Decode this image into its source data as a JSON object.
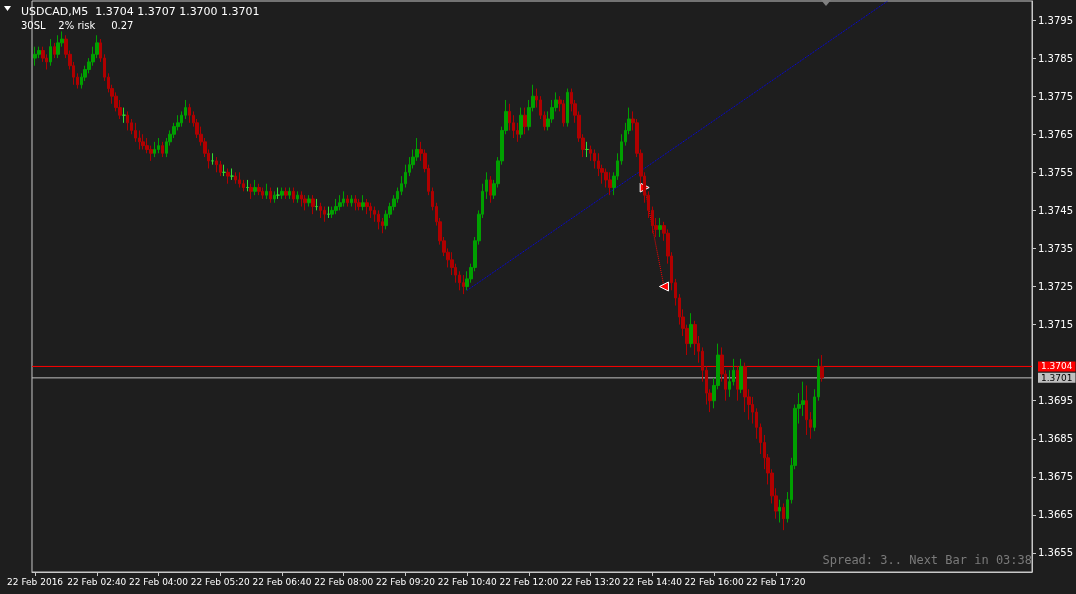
{
  "chart_data": {
    "type": "candlestick",
    "title": "USDCAD,M5  1.3704 1.3707 1.3700 1.3701",
    "subtitle": "30SL    2% risk     0.27",
    "annotations": [
      "Spread: 3.. Next Bar in 03:38"
    ],
    "xlim": [
      "2016-02-22T01:16",
      "2016-02-22T22:52"
    ],
    "xticks": [
      {
        "value": "2016-02-22T01:20",
        "label": "22 Feb 2016"
      },
      {
        "value": "2016-02-22T02:40",
        "label": "22 Feb 02:40"
      },
      {
        "value": "2016-02-22T04:00",
        "label": "22 Feb 04:00"
      },
      {
        "value": "2016-02-22T05:20",
        "label": "22 Feb 05:20"
      },
      {
        "value": "2016-02-22T06:40",
        "label": "22 Feb 06:40"
      },
      {
        "value": "2016-02-22T08:00",
        "label": "22 Feb 08:00"
      },
      {
        "value": "2016-02-22T09:20",
        "label": "22 Feb 09:20"
      },
      {
        "value": "2016-02-22T10:40",
        "label": "22 Feb 10:40"
      },
      {
        "value": "2016-02-22T12:00",
        "label": "22 Feb 12:00"
      },
      {
        "value": "2016-02-22T13:20",
        "label": "22 Feb 13:20"
      },
      {
        "value": "2016-02-22T14:40",
        "label": "22 Feb 14:40"
      },
      {
        "value": "2016-02-22T16:00",
        "label": "22 Feb 16:00"
      },
      {
        "value": "2016-02-22T17:20",
        "label": "22 Feb 17:20"
      }
    ],
    "ylim": [
      1.365,
      1.38
    ],
    "yticks": [
      1.3655,
      1.3665,
      1.3675,
      1.3685,
      1.3695,
      1.3715,
      1.3725,
      1.3735,
      1.3745,
      1.3755,
      1.3765,
      1.3775,
      1.3785,
      1.3795
    ],
    "ref_lines": [
      {
        "axis": "y",
        "value": 1.3704,
        "label": "1.3704",
        "color": "#ff0000"
      },
      {
        "axis": "y",
        "value": 1.3701,
        "label": "1.3701",
        "color": "#c0c0c0"
      }
    ],
    "series": [
      {
        "colors": [
          "#00a000",
          "#00a000",
          "#b00000",
          "#b00000",
          "#00a000",
          "#b00000",
          "#00a000",
          "#00a000",
          "#b00000",
          "#b00000",
          "#b00000",
          "#b00000",
          "#00a000",
          "#00a000",
          "#00a000",
          "#00a000",
          "#00a000",
          "#b00000",
          "#b00000",
          "#b00000",
          "#b00000",
          "#b00000",
          "#b00000",
          "#30e030",
          "#b00000",
          "#b00000",
          "#b00000",
          "#b00000",
          "#b00000",
          "#b00000",
          "#b00000",
          "#00a000",
          "#00a000",
          "#b00000",
          "#00a000",
          "#00a000",
          "#00a000",
          "#00a000",
          "#00a000",
          "#00a000",
          "#b00000",
          "#b00000",
          "#b00000",
          "#b00000",
          "#b00000",
          "#b00000",
          "#30e030",
          "#b00000",
          "#b00000",
          "#30e030",
          "#b00000",
          "#30e030",
          "#b00000",
          "#b00000",
          "#b00000",
          "#30e030",
          "#b00000",
          "#00a000",
          "#b00000",
          "#b00000",
          "#00a000",
          "#b00000",
          "#00a000",
          "#30e030",
          "#00a000",
          "#b00000",
          "#00a000",
          "#b00000",
          "#00a000",
          "#b00000",
          "#b00000",
          "#00a000",
          "#b00000",
          "#30e030",
          "#b00000",
          "#b00000",
          "#30e030",
          "#00a000",
          "#00a000",
          "#00a000",
          "#00a000",
          "#b00000",
          "#00a000",
          "#b00000",
          "#b00000",
          "#00a000",
          "#b00000",
          "#b00000",
          "#b00000",
          "#b00000",
          "#b00000",
          "#00a000",
          "#00a000",
          "#00a000",
          "#00a000",
          "#00a000",
          "#00a000",
          "#00a000",
          "#00a000",
          "#00a000",
          "#b00000",
          "#b00000",
          "#b00000",
          "#b00000",
          "#b00000",
          "#b00000",
          "#b00000",
          "#b00000",
          "#b00000",
          "#b00000",
          "#b00000",
          "#b00000",
          "#00a000",
          "#00a000",
          "#00a000",
          "#00a000",
          "#00a000",
          "#00a000",
          "#b00000",
          "#00a000",
          "#00a000",
          "#00a000",
          "#00a000",
          "#b00000",
          "#b00000",
          "#b00000",
          "#00a000",
          "#b00000",
          "#00a000",
          "#00a000",
          "#b00000",
          "#b00000",
          "#b00000",
          "#00a000",
          "#00a000",
          "#00a000",
          "#b00000",
          "#b00000",
          "#00a000",
          "#b00000",
          "#b00000",
          "#b00000",
          "#b00000",
          "#30e030",
          "#b00000",
          "#b00000",
          "#b00000",
          "#b00000",
          "#b00000",
          "#b00000",
          "#00a000",
          "#00a000",
          "#00a000",
          "#00a000",
          "#00a000",
          "#b00000",
          "#b00000",
          "#b00000",
          "#b00000",
          "#b00000",
          "#b00000",
          "#b00000",
          "#00a000",
          "#b00000",
          "#b00000",
          "#b00000",
          "#b00000",
          "#b00000",
          "#b00000",
          "#b00000",
          "#00a000",
          "#b00000",
          "#b00000",
          "#b00000",
          "#b00000",
          "#b00000",
          "#00a000",
          "#00a000",
          "#b00000",
          "#b00000",
          "#00a000",
          "#00a000",
          "#b00000",
          "#00a000",
          "#b00000",
          "#b00000",
          "#b00000",
          "#b00000",
          "#b00000",
          "#b00000",
          "#b00000",
          "#b00000",
          "#b00000",
          "#00a000",
          "#b00000",
          "#00a000",
          "#00a000",
          "#00a000",
          "#00a000",
          "#00a000",
          "#b00000",
          "#b00000",
          "#00a000",
          "#00a000",
          "#b00000"
        ],
        "x": [
          "2016-02-22T01:20",
          "2016-02-22T01:25",
          "2016-02-22T01:30",
          "2016-02-22T01:35",
          "2016-02-22T01:40",
          "2016-02-22T01:45",
          "2016-02-22T01:50",
          "2016-02-22T01:55",
          "2016-02-22T02:00",
          "2016-02-22T02:05",
          "2016-02-22T02:10",
          "2016-02-22T02:15",
          "2016-02-22T02:20",
          "2016-02-22T02:25",
          "2016-02-22T02:30",
          "2016-02-22T02:35",
          "2016-02-22T02:40",
          "2016-02-22T02:45",
          "2016-02-22T02:50",
          "2016-02-22T02:55",
          "2016-02-22T03:00",
          "2016-02-22T03:05",
          "2016-02-22T03:10",
          "2016-02-22T03:15",
          "2016-02-22T03:20",
          "2016-02-22T03:25",
          "2016-02-22T03:30",
          "2016-02-22T03:35",
          "2016-02-22T03:40",
          "2016-02-22T03:45",
          "2016-02-22T03:50",
          "2016-02-22T03:55",
          "2016-02-22T04:00",
          "2016-02-22T04:05",
          "2016-02-22T04:10",
          "2016-02-22T04:15",
          "2016-02-22T04:20",
          "2016-02-22T04:25",
          "2016-02-22T04:30",
          "2016-02-22T04:35",
          "2016-02-22T04:40",
          "2016-02-22T04:45",
          "2016-02-22T04:50",
          "2016-02-22T04:55",
          "2016-02-22T05:00",
          "2016-02-22T05:05",
          "2016-02-22T05:10",
          "2016-02-22T05:15",
          "2016-02-22T05:20",
          "2016-02-22T05:25",
          "2016-02-22T05:30",
          "2016-02-22T05:35",
          "2016-02-22T05:40",
          "2016-02-22T05:45",
          "2016-02-22T05:50",
          "2016-02-22T05:55",
          "2016-02-22T06:00",
          "2016-02-22T06:05",
          "2016-02-22T06:10",
          "2016-02-22T06:15",
          "2016-02-22T06:20",
          "2016-02-22T06:25",
          "2016-02-22T06:30",
          "2016-02-22T06:35",
          "2016-02-22T06:40",
          "2016-02-22T06:45",
          "2016-02-22T06:50",
          "2016-02-22T06:55",
          "2016-02-22T07:00",
          "2016-02-22T07:05",
          "2016-02-22T07:10",
          "2016-02-22T07:15",
          "2016-02-22T07:20",
          "2016-02-22T07:25",
          "2016-02-22T07:30",
          "2016-02-22T07:35",
          "2016-02-22T07:40",
          "2016-02-22T07:45",
          "2016-02-22T07:50",
          "2016-02-22T07:55",
          "2016-02-22T08:00",
          "2016-02-22T08:05",
          "2016-02-22T08:10",
          "2016-02-22T08:15",
          "2016-02-22T08:20",
          "2016-02-22T08:25",
          "2016-02-22T08:30",
          "2016-02-22T08:35",
          "2016-02-22T08:40",
          "2016-02-22T08:45",
          "2016-02-22T08:50",
          "2016-02-22T08:55",
          "2016-02-22T09:00",
          "2016-02-22T09:05",
          "2016-02-22T09:10",
          "2016-02-22T09:15",
          "2016-02-22T09:20",
          "2016-02-22T09:25",
          "2016-02-22T09:30",
          "2016-02-22T09:35",
          "2016-02-22T09:40",
          "2016-02-22T09:45",
          "2016-02-22T09:50",
          "2016-02-22T09:55",
          "2016-02-22T10:00",
          "2016-02-22T10:05",
          "2016-02-22T10:10",
          "2016-02-22T10:15",
          "2016-02-22T10:20",
          "2016-02-22T10:25",
          "2016-02-22T10:30",
          "2016-02-22T10:35",
          "2016-02-22T10:40",
          "2016-02-22T10:45",
          "2016-02-22T10:50",
          "2016-02-22T10:55",
          "2016-02-22T11:00",
          "2016-02-22T11:05",
          "2016-02-22T11:10",
          "2016-02-22T11:15",
          "2016-02-22T11:20",
          "2016-02-22T11:25",
          "2016-02-22T11:30",
          "2016-02-22T11:35",
          "2016-02-22T11:40",
          "2016-02-22T11:45",
          "2016-02-22T11:50",
          "2016-02-22T11:55",
          "2016-02-22T12:00",
          "2016-02-22T12:05",
          "2016-02-22T12:10",
          "2016-02-22T12:15",
          "2016-02-22T12:20",
          "2016-02-22T12:25",
          "2016-02-22T12:30",
          "2016-02-22T12:35",
          "2016-02-22T12:40",
          "2016-02-22T12:45",
          "2016-02-22T12:50",
          "2016-02-22T12:55",
          "2016-02-22T13:00",
          "2016-02-22T13:05",
          "2016-02-22T13:10",
          "2016-02-22T13:15",
          "2016-02-22T13:20",
          "2016-02-22T13:25",
          "2016-02-22T13:30",
          "2016-02-22T13:35",
          "2016-02-22T13:40",
          "2016-02-22T13:45",
          "2016-02-22T13:50",
          "2016-02-22T13:55",
          "2016-02-22T14:00",
          "2016-02-22T14:05",
          "2016-02-22T14:10",
          "2016-02-22T14:15",
          "2016-02-22T14:20",
          "2016-02-22T14:25",
          "2016-02-22T14:30",
          "2016-02-22T14:35",
          "2016-02-22T14:40",
          "2016-02-22T14:45",
          "2016-02-22T14:50",
          "2016-02-22T14:55",
          "2016-02-22T15:00",
          "2016-02-22T15:05",
          "2016-02-22T15:10",
          "2016-02-22T15:15",
          "2016-02-22T15:20",
          "2016-02-22T15:25",
          "2016-02-22T15:30",
          "2016-02-22T15:35",
          "2016-02-22T15:40",
          "2016-02-22T15:45",
          "2016-02-22T15:50",
          "2016-02-22T15:55",
          "2016-02-22T16:00",
          "2016-02-22T16:05",
          "2016-02-22T16:10",
          "2016-02-22T16:15",
          "2016-02-22T16:20",
          "2016-02-22T16:25",
          "2016-02-22T16:30",
          "2016-02-22T16:35",
          "2016-02-22T16:40",
          "2016-02-22T16:45",
          "2016-02-22T16:50",
          "2016-02-22T16:55",
          "2016-02-22T17:00",
          "2016-02-22T17:05",
          "2016-02-22T17:10",
          "2016-02-22T17:15",
          "2016-02-22T17:20",
          "2016-02-22T17:25",
          "2016-02-22T17:30",
          "2016-02-22T17:35",
          "2016-02-22T17:40",
          "2016-02-22T17:45",
          "2016-02-22T17:50",
          "2016-02-22T17:55",
          "2016-02-22T18:00",
          "2016-02-22T18:05",
          "2016-02-22T18:10",
          "2016-02-22T18:15",
          "2016-02-22T18:20"
        ],
        "ohlc": [
          [
            1.3785,
            1.3788,
            1.3783,
            1.3786
          ],
          [
            1.3786,
            1.3788,
            1.3785,
            1.3787
          ],
          [
            1.3787,
            1.3788,
            1.3784,
            1.3785
          ],
          [
            1.3785,
            1.3786,
            1.3782,
            1.3784
          ],
          [
            1.3784,
            1.379,
            1.3783,
            1.3788
          ],
          [
            1.3788,
            1.3789,
            1.3785,
            1.3786
          ],
          [
            1.3786,
            1.3791,
            1.3785,
            1.3789
          ],
          [
            1.3789,
            1.3792,
            1.3788,
            1.379
          ],
          [
            1.379,
            1.3791,
            1.3785,
            1.3786
          ],
          [
            1.3786,
            1.3787,
            1.3782,
            1.3783
          ],
          [
            1.3783,
            1.3784,
            1.3778,
            1.378
          ],
          [
            1.378,
            1.3781,
            1.3777,
            1.3778
          ],
          [
            1.3778,
            1.3781,
            1.3777,
            1.378
          ],
          [
            1.378,
            1.3783,
            1.3779,
            1.3782
          ],
          [
            1.3782,
            1.3785,
            1.3781,
            1.3784
          ],
          [
            1.3784,
            1.3788,
            1.3783,
            1.3786
          ],
          [
            1.3786,
            1.3791,
            1.3785,
            1.3789
          ],
          [
            1.3789,
            1.379,
            1.3784,
            1.3785
          ],
          [
            1.3785,
            1.3786,
            1.3779,
            1.378
          ],
          [
            1.378,
            1.3781,
            1.3776,
            1.3777
          ],
          [
            1.3777,
            1.3778,
            1.3773,
            1.3775
          ],
          [
            1.3775,
            1.3776,
            1.3771,
            1.3772
          ],
          [
            1.3772,
            1.3774,
            1.3769,
            1.377
          ],
          [
            1.377,
            1.3772,
            1.3768,
            1.377
          ],
          [
            1.377,
            1.3771,
            1.3766,
            1.3768
          ],
          [
            1.3768,
            1.3769,
            1.3765,
            1.3766
          ],
          [
            1.3766,
            1.3768,
            1.3763,
            1.3764
          ],
          [
            1.3764,
            1.3766,
            1.3761,
            1.3763
          ],
          [
            1.3763,
            1.3765,
            1.3761,
            1.3762
          ],
          [
            1.3762,
            1.3764,
            1.376,
            1.3761
          ],
          [
            1.3761,
            1.3762,
            1.3758,
            1.376
          ],
          [
            1.376,
            1.3763,
            1.3759,
            1.3761
          ],
          [
            1.3761,
            1.3764,
            1.376,
            1.3762
          ],
          [
            1.3762,
            1.3763,
            1.3759,
            1.376
          ],
          [
            1.376,
            1.3764,
            1.3759,
            1.3763
          ],
          [
            1.3763,
            1.3766,
            1.3762,
            1.3765
          ],
          [
            1.3765,
            1.3768,
            1.3764,
            1.3767
          ],
          [
            1.3767,
            1.377,
            1.3766,
            1.3768
          ],
          [
            1.3768,
            1.3771,
            1.3767,
            1.377
          ],
          [
            1.377,
            1.3774,
            1.3769,
            1.3772
          ],
          [
            1.3772,
            1.3773,
            1.3768,
            1.377
          ],
          [
            1.377,
            1.3771,
            1.3767,
            1.3768
          ],
          [
            1.3768,
            1.3769,
            1.3764,
            1.3765
          ],
          [
            1.3765,
            1.3767,
            1.3762,
            1.3763
          ],
          [
            1.3763,
            1.3764,
            1.3759,
            1.376
          ],
          [
            1.376,
            1.3761,
            1.3756,
            1.3758
          ],
          [
            1.3758,
            1.376,
            1.3757,
            1.3758
          ],
          [
            1.3758,
            1.3759,
            1.3755,
            1.3757
          ],
          [
            1.3757,
            1.3758,
            1.3754,
            1.3755
          ],
          [
            1.3755,
            1.3757,
            1.3754,
            1.3755
          ],
          [
            1.3755,
            1.3756,
            1.3752,
            1.3754
          ],
          [
            1.3754,
            1.3756,
            1.3753,
            1.3754
          ],
          [
            1.3754,
            1.3755,
            1.3752,
            1.3753
          ],
          [
            1.3753,
            1.3755,
            1.3751,
            1.3752
          ],
          [
            1.3752,
            1.3753,
            1.375,
            1.3751
          ],
          [
            1.3751,
            1.3753,
            1.375,
            1.3751
          ],
          [
            1.3751,
            1.3752,
            1.3748,
            1.375
          ],
          [
            1.375,
            1.3753,
            1.3749,
            1.3751
          ],
          [
            1.3751,
            1.3752,
            1.3749,
            1.375
          ],
          [
            1.375,
            1.3751,
            1.3748,
            1.3749
          ],
          [
            1.3749,
            1.3752,
            1.3748,
            1.375
          ],
          [
            1.375,
            1.3751,
            1.3747,
            1.3748
          ],
          [
            1.3748,
            1.375,
            1.3747,
            1.3749
          ],
          [
            1.3749,
            1.3751,
            1.3748,
            1.3749
          ],
          [
            1.3749,
            1.3751,
            1.3748,
            1.375
          ],
          [
            1.375,
            1.3751,
            1.3748,
            1.3749
          ],
          [
            1.3749,
            1.3751,
            1.3748,
            1.375
          ],
          [
            1.375,
            1.3751,
            1.3747,
            1.3748
          ],
          [
            1.3748,
            1.375,
            1.3747,
            1.3749
          ],
          [
            1.3749,
            1.375,
            1.3746,
            1.3748
          ],
          [
            1.3748,
            1.3749,
            1.3745,
            1.3747
          ],
          [
            1.3747,
            1.3749,
            1.3746,
            1.3748
          ],
          [
            1.3748,
            1.3749,
            1.3744,
            1.3746
          ],
          [
            1.3746,
            1.3748,
            1.3745,
            1.3746
          ],
          [
            1.3746,
            1.3747,
            1.3743,
            1.3745
          ],
          [
            1.3745,
            1.3746,
            1.3742,
            1.3744
          ],
          [
            1.3744,
            1.3746,
            1.3743,
            1.3744
          ],
          [
            1.3744,
            1.3746,
            1.3743,
            1.3745
          ],
          [
            1.3745,
            1.3748,
            1.3744,
            1.3746
          ],
          [
            1.3746,
            1.3749,
            1.3745,
            1.3747
          ],
          [
            1.3747,
            1.375,
            1.3746,
            1.3748
          ],
          [
            1.3748,
            1.3749,
            1.3746,
            1.3747
          ],
          [
            1.3747,
            1.3749,
            1.3746,
            1.3748
          ],
          [
            1.3748,
            1.3749,
            1.3745,
            1.3747
          ],
          [
            1.3747,
            1.3748,
            1.3745,
            1.3746
          ],
          [
            1.3746,
            1.3749,
            1.3745,
            1.3747
          ],
          [
            1.3747,
            1.3748,
            1.3744,
            1.3746
          ],
          [
            1.3746,
            1.3747,
            1.3743,
            1.3745
          ],
          [
            1.3745,
            1.3746,
            1.3742,
            1.3744
          ],
          [
            1.3744,
            1.3745,
            1.374,
            1.3742
          ],
          [
            1.3742,
            1.3743,
            1.3739,
            1.3741
          ],
          [
            1.3741,
            1.3745,
            1.374,
            1.3744
          ],
          [
            1.3744,
            1.3747,
            1.3743,
            1.3746
          ],
          [
            1.3746,
            1.3749,
            1.3745,
            1.3748
          ],
          [
            1.3748,
            1.3751,
            1.3747,
            1.375
          ],
          [
            1.375,
            1.3754,
            1.3749,
            1.3752
          ],
          [
            1.3752,
            1.3757,
            1.3751,
            1.3755
          ],
          [
            1.3755,
            1.3759,
            1.3754,
            1.3757
          ],
          [
            1.3757,
            1.3761,
            1.3756,
            1.3759
          ],
          [
            1.3759,
            1.3764,
            1.3758,
            1.3761
          ],
          [
            1.3761,
            1.3763,
            1.3758,
            1.376
          ],
          [
            1.376,
            1.3761,
            1.3755,
            1.3756
          ],
          [
            1.3756,
            1.3757,
            1.3749,
            1.375
          ],
          [
            1.375,
            1.3751,
            1.3745,
            1.3746
          ],
          [
            1.3746,
            1.3747,
            1.3741,
            1.3742
          ],
          [
            1.3742,
            1.3743,
            1.3736,
            1.3737
          ],
          [
            1.3737,
            1.3738,
            1.3733,
            1.3734
          ],
          [
            1.3734,
            1.3735,
            1.373,
            1.3732
          ],
          [
            1.3732,
            1.3734,
            1.3728,
            1.373
          ],
          [
            1.373,
            1.3731,
            1.3726,
            1.3728
          ],
          [
            1.3728,
            1.3729,
            1.3724,
            1.3726
          ],
          [
            1.3726,
            1.3728,
            1.3723,
            1.3725
          ],
          [
            1.3725,
            1.3729,
            1.3724,
            1.3727
          ],
          [
            1.3727,
            1.3731,
            1.3726,
            1.373
          ],
          [
            1.373,
            1.3738,
            1.3729,
            1.3737
          ],
          [
            1.3737,
            1.3745,
            1.3736,
            1.3744
          ],
          [
            1.3744,
            1.3752,
            1.3743,
            1.375
          ],
          [
            1.375,
            1.3755,
            1.3748,
            1.3753
          ],
          [
            1.3753,
            1.3754,
            1.3747,
            1.3749
          ],
          [
            1.3749,
            1.3753,
            1.3748,
            1.3752
          ],
          [
            1.3752,
            1.3759,
            1.3751,
            1.3758
          ],
          [
            1.3758,
            1.3767,
            1.3757,
            1.3766
          ],
          [
            1.3766,
            1.3774,
            1.3765,
            1.3771
          ],
          [
            1.3771,
            1.3773,
            1.3766,
            1.3768
          ],
          [
            1.3768,
            1.377,
            1.3764,
            1.3766
          ],
          [
            1.3766,
            1.3768,
            1.3763,
            1.3765
          ],
          [
            1.3765,
            1.3772,
            1.3764,
            1.377
          ],
          [
            1.377,
            1.3772,
            1.3765,
            1.3767
          ],
          [
            1.3767,
            1.3774,
            1.3766,
            1.3772
          ],
          [
            1.3772,
            1.3778,
            1.3771,
            1.3775
          ],
          [
            1.3775,
            1.3777,
            1.3772,
            1.3774
          ],
          [
            1.3774,
            1.3775,
            1.3769,
            1.377
          ],
          [
            1.377,
            1.3771,
            1.3766,
            1.3767
          ],
          [
            1.3767,
            1.3771,
            1.3766,
            1.3769
          ],
          [
            1.3769,
            1.3774,
            1.3768,
            1.3772
          ],
          [
            1.3772,
            1.3776,
            1.3771,
            1.3774
          ],
          [
            1.3774,
            1.3775,
            1.3771,
            1.3773
          ],
          [
            1.3773,
            1.3774,
            1.3767,
            1.3768
          ],
          [
            1.3768,
            1.3777,
            1.3767,
            1.3776
          ],
          [
            1.3776,
            1.3777,
            1.3771,
            1.3773
          ],
          [
            1.3773,
            1.3774,
            1.3768,
            1.377
          ],
          [
            1.377,
            1.3771,
            1.3763,
            1.3764
          ],
          [
            1.3764,
            1.3765,
            1.3759,
            1.3761
          ],
          [
            1.3761,
            1.3763,
            1.3759,
            1.3761
          ],
          [
            1.3761,
            1.3762,
            1.3758,
            1.376
          ],
          [
            1.376,
            1.3761,
            1.3756,
            1.3758
          ],
          [
            1.3758,
            1.376,
            1.3754,
            1.3756
          ],
          [
            1.3756,
            1.3757,
            1.3752,
            1.3755
          ],
          [
            1.3755,
            1.3756,
            1.3751,
            1.3753
          ],
          [
            1.3753,
            1.3755,
            1.3749,
            1.3751
          ],
          [
            1.3751,
            1.3755,
            1.3749,
            1.3754
          ],
          [
            1.3754,
            1.376,
            1.3753,
            1.3758
          ],
          [
            1.3758,
            1.3765,
            1.3757,
            1.3763
          ],
          [
            1.3763,
            1.3768,
            1.3762,
            1.3766
          ],
          [
            1.3766,
            1.3772,
            1.3765,
            1.3769
          ],
          [
            1.3769,
            1.3771,
            1.3766,
            1.3768
          ],
          [
            1.3768,
            1.3769,
            1.3759,
            1.376
          ],
          [
            1.376,
            1.3761,
            1.3752,
            1.3754
          ],
          [
            1.3754,
            1.3755,
            1.3747,
            1.3749
          ],
          [
            1.3749,
            1.375,
            1.3743,
            1.3745
          ],
          [
            1.3745,
            1.3746,
            1.3739,
            1.3741
          ],
          [
            1.3741,
            1.3743,
            1.3738,
            1.374
          ],
          [
            1.374,
            1.3743,
            1.3738,
            1.3741
          ],
          [
            1.3741,
            1.3742,
            1.3737,
            1.3739
          ],
          [
            1.3739,
            1.374,
            1.3731,
            1.3733
          ],
          [
            1.3733,
            1.3734,
            1.3724,
            1.3726
          ],
          [
            1.3726,
            1.3727,
            1.372,
            1.3722
          ],
          [
            1.3722,
            1.3723,
            1.3715,
            1.3717
          ],
          [
            1.3717,
            1.3719,
            1.3712,
            1.3714
          ],
          [
            1.3714,
            1.3715,
            1.3707,
            1.371
          ],
          [
            1.371,
            1.3718,
            1.3709,
            1.3715
          ],
          [
            1.3715,
            1.3716,
            1.3707,
            1.371
          ],
          [
            1.371,
            1.3712,
            1.3705,
            1.3708
          ],
          [
            1.3708,
            1.3709,
            1.37,
            1.3703
          ],
          [
            1.3703,
            1.3704,
            1.3694,
            1.3697
          ],
          [
            1.3697,
            1.3698,
            1.3692,
            1.3695
          ],
          [
            1.3695,
            1.3701,
            1.3693,
            1.3699
          ],
          [
            1.3699,
            1.371,
            1.3698,
            1.3707
          ],
          [
            1.3707,
            1.3709,
            1.37,
            1.3702
          ],
          [
            1.3702,
            1.3703,
            1.3695,
            1.3698
          ],
          [
            1.3698,
            1.3703,
            1.3696,
            1.37
          ],
          [
            1.37,
            1.3706,
            1.3699,
            1.3703
          ],
          [
            1.3703,
            1.3704,
            1.3695,
            1.3698
          ],
          [
            1.3698,
            1.3706,
            1.3697,
            1.3704
          ],
          [
            1.3704,
            1.3705,
            1.3692,
            1.3696
          ],
          [
            1.3696,
            1.3698,
            1.369,
            1.3694
          ],
          [
            1.3694,
            1.3696,
            1.3689,
            1.3692
          ],
          [
            1.3692,
            1.3693,
            1.3685,
            1.3688
          ],
          [
            1.3688,
            1.3689,
            1.3681,
            1.3684
          ],
          [
            1.3684,
            1.3686,
            1.3677,
            1.368
          ],
          [
            1.368,
            1.3681,
            1.3673,
            1.3676
          ],
          [
            1.3676,
            1.3677,
            1.3668,
            1.367
          ],
          [
            1.367,
            1.3672,
            1.3664,
            1.3666
          ],
          [
            1.3666,
            1.3669,
            1.3663,
            1.3667
          ],
          [
            1.3667,
            1.3668,
            1.3661,
            1.3664
          ],
          [
            1.3664,
            1.3671,
            1.3663,
            1.3669
          ],
          [
            1.3669,
            1.368,
            1.3668,
            1.3678
          ],
          [
            1.3678,
            1.3694,
            1.3677,
            1.3693
          ],
          [
            1.3693,
            1.3697,
            1.3689,
            1.3694
          ],
          [
            1.3694,
            1.37,
            1.3691,
            1.3695
          ],
          [
            1.3695,
            1.3699,
            1.3686,
            1.369
          ],
          [
            1.369,
            1.3692,
            1.3685,
            1.3688
          ],
          [
            1.3688,
            1.3698,
            1.3687,
            1.3696
          ],
          [
            1.3696,
            1.3706,
            1.3695,
            1.3704
          ],
          [
            1.3704,
            1.3707,
            1.37,
            1.3701
          ]
        ]
      },
      {
        "type": "line",
        "color": "#0000ff",
        "line_style": "dotted",
        "x": [
          "2016-02-22T10:40",
          "2016-02-22T19:45"
        ],
        "values": [
          1.3724,
          1.38
        ]
      },
      {
        "type": "line",
        "color": "#ff0000",
        "line_style": "dotted",
        "marker": "triangle",
        "x": [
          "2016-02-22T14:30",
          "2016-02-22T14:55"
        ],
        "values": [
          1.3751,
          1.3725
        ]
      }
    ]
  }
}
